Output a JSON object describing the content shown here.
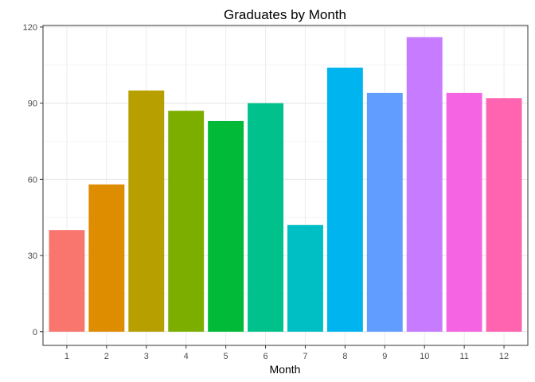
{
  "chart_data": {
    "type": "bar",
    "title": "Graduates by Month",
    "xlabel": "Month",
    "ylabel": "",
    "categories": [
      "1",
      "2",
      "3",
      "4",
      "5",
      "6",
      "7",
      "8",
      "9",
      "10",
      "11",
      "12"
    ],
    "values": [
      40,
      58,
      95,
      87,
      83,
      90,
      42,
      104,
      94,
      116,
      94,
      92
    ],
    "ylim": [
      0,
      120
    ],
    "yticks": [
      0,
      30,
      60,
      90,
      120
    ],
    "grid": true,
    "legend": "none",
    "colors": [
      "#F8766D",
      "#DE8C00",
      "#B79F00",
      "#7CAE00",
      "#00BA38",
      "#00C08B",
      "#00BFC4",
      "#00B4F0",
      "#619CFF",
      "#C77CFF",
      "#F564E3",
      "#FF64B0"
    ]
  }
}
